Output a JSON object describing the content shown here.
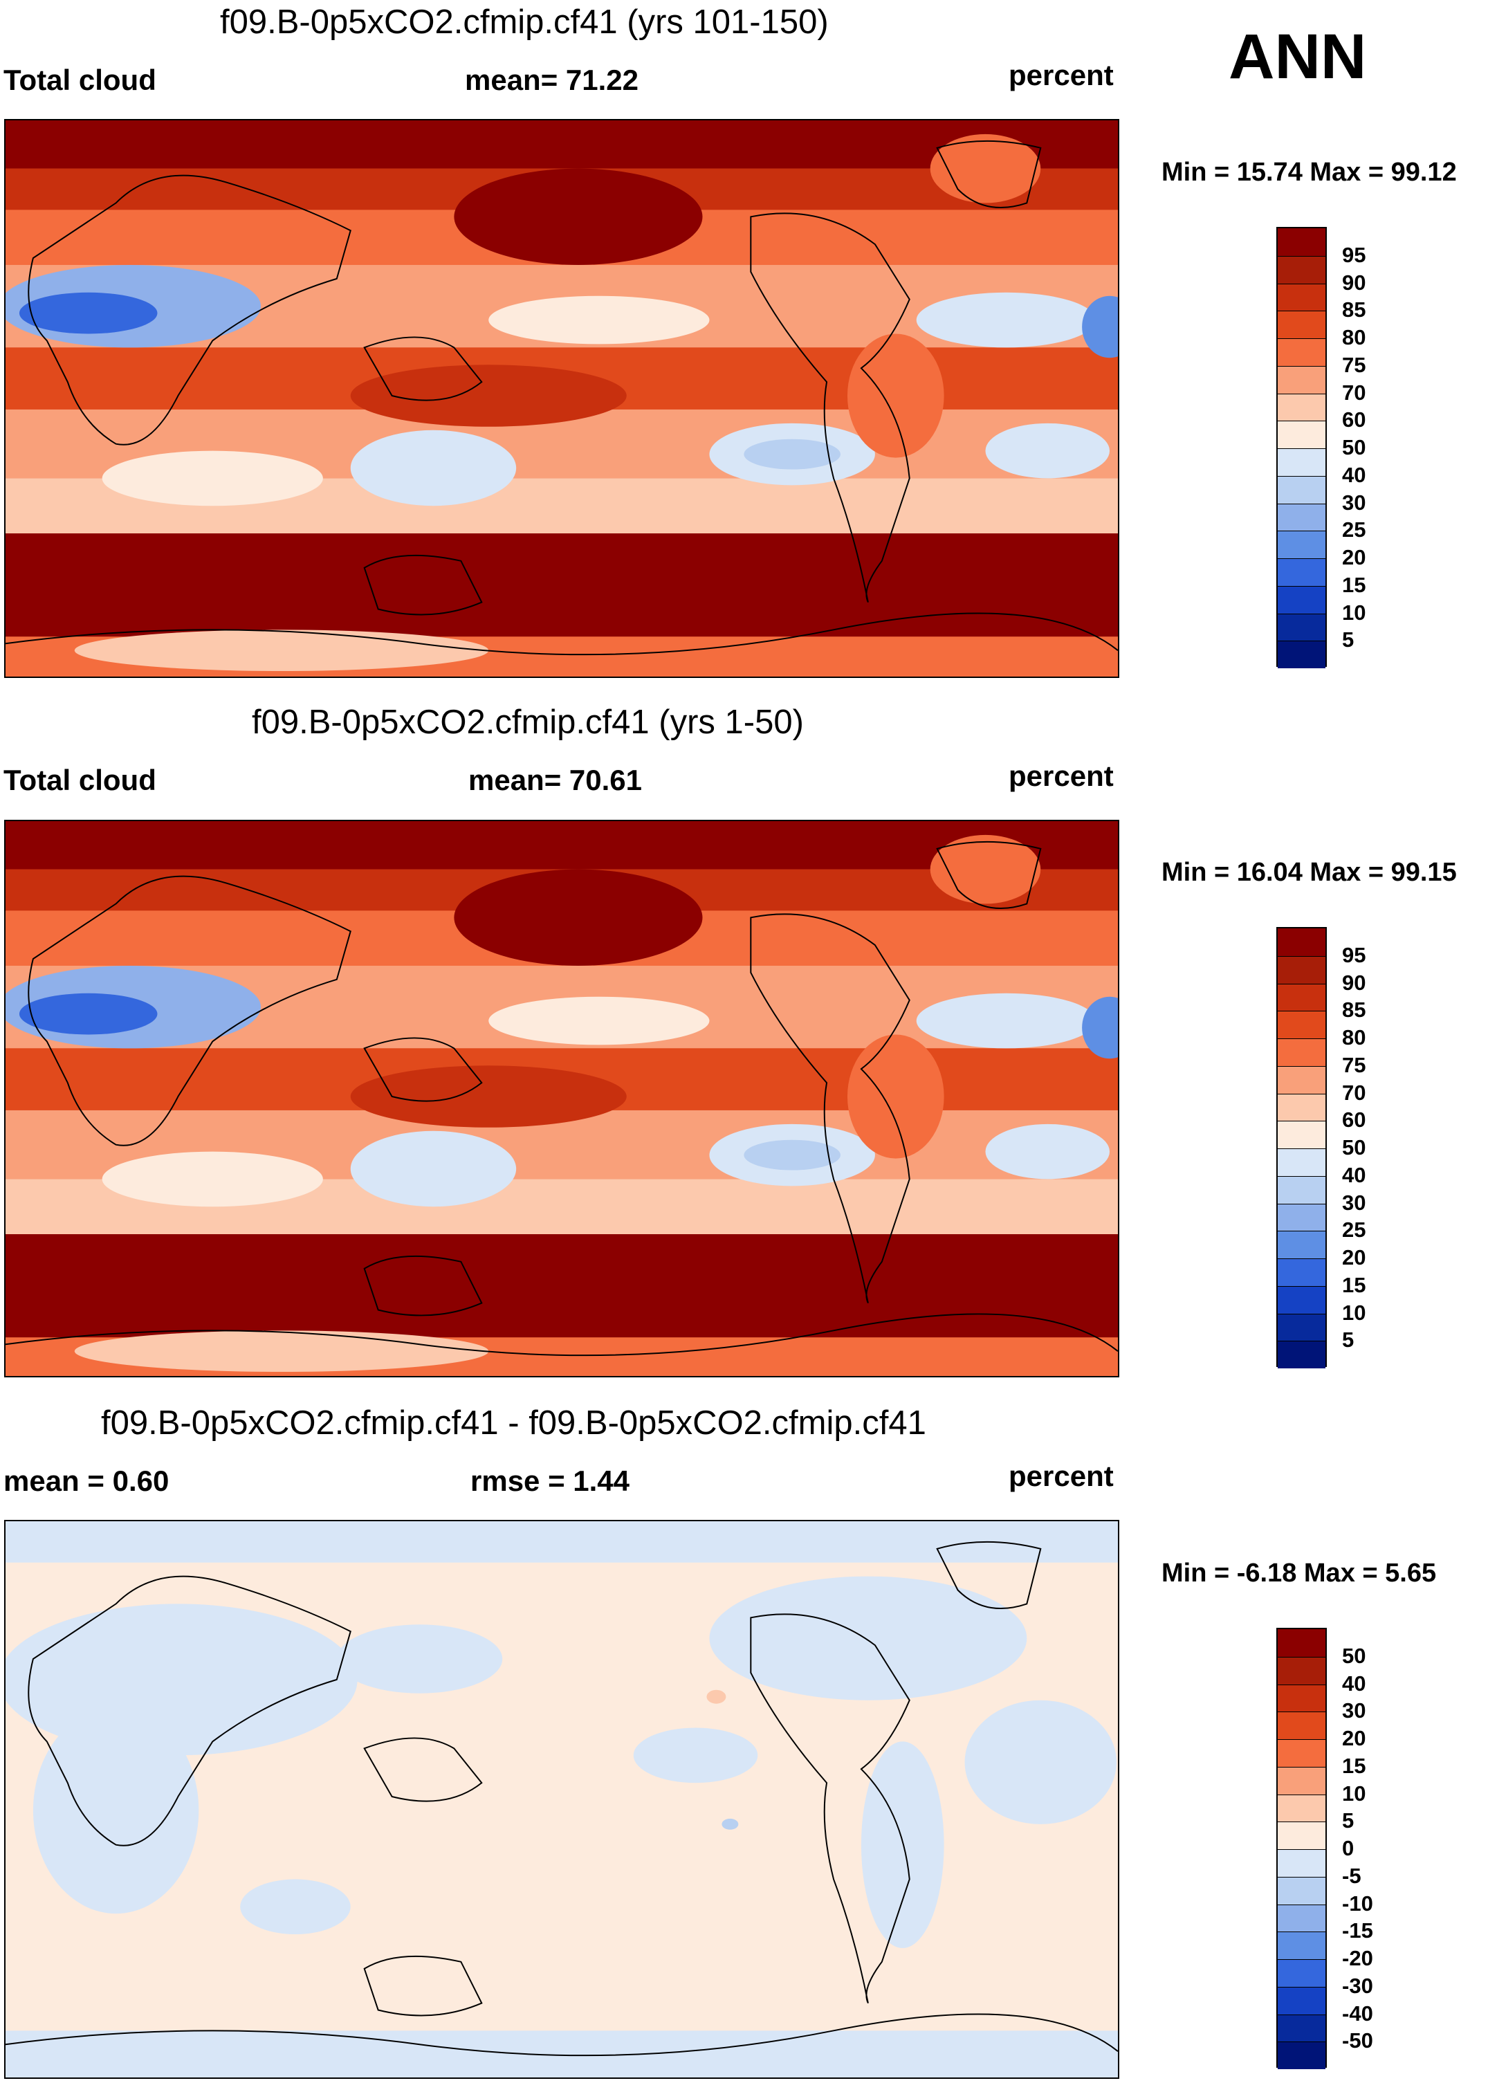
{
  "figure": {
    "season": "ANN"
  },
  "chart_data": [
    {
      "type": "heatmap",
      "title": "f09.B-0p5xCO2.cfmip.cf41 (yrs 101-150)",
      "left_label": "Total cloud",
      "center_label": "mean=  71.22",
      "units": "percent",
      "minmax": "Min =  15.74 Max =  99.12",
      "stats": {
        "mean": 71.22,
        "min": 15.74,
        "max": 99.12
      },
      "colorbar": {
        "levels": [
          "95",
          "90",
          "85",
          "80",
          "75",
          "70",
          "60",
          "50",
          "40",
          "30",
          "25",
          "20",
          "15",
          "10",
          "5"
        ],
        "colors": [
          "#8b0000",
          "#a71e08",
          "#c8300e",
          "#e14a1c",
          "#f46d3e",
          "#f9a07a",
          "#fcc9ad",
          "#fdebdd",
          "#d8e6f7",
          "#b8d0f1",
          "#8fb0ea",
          "#5e8fe4",
          "#3467dd",
          "#1542c4",
          "#072a9c",
          "#001478"
        ]
      }
    },
    {
      "type": "heatmap",
      "title": "f09.B-0p5xCO2.cfmip.cf41 (yrs 1-50)",
      "left_label": "Total cloud",
      "center_label": "mean=  70.61",
      "units": "percent",
      "minmax": "Min =  16.04 Max =  99.15",
      "stats": {
        "mean": 70.61,
        "min": 16.04,
        "max": 99.15
      },
      "colorbar": {
        "levels": [
          "95",
          "90",
          "85",
          "80",
          "75",
          "70",
          "60",
          "50",
          "40",
          "30",
          "25",
          "20",
          "15",
          "10",
          "5"
        ],
        "colors": [
          "#8b0000",
          "#a71e08",
          "#c8300e",
          "#e14a1c",
          "#f46d3e",
          "#f9a07a",
          "#fcc9ad",
          "#fdebdd",
          "#d8e6f7",
          "#b8d0f1",
          "#8fb0ea",
          "#5e8fe4",
          "#3467dd",
          "#1542c4",
          "#072a9c",
          "#001478"
        ]
      }
    },
    {
      "type": "heatmap",
      "title": "f09.B-0p5xCO2.cfmip.cf41 - f09.B-0p5xCO2.cfmip.cf41",
      "left_label": "mean =   0.60",
      "center_label": "rmse =   1.44",
      "units": "percent",
      "minmax": "Min =  -6.18 Max =   5.65",
      "stats": {
        "mean": 0.6,
        "rmse": 1.44,
        "min": -6.18,
        "max": 5.65
      },
      "colorbar": {
        "levels": [
          "50",
          "40",
          "30",
          "20",
          "15",
          "10",
          "5",
          "0",
          "-5",
          "-10",
          "-15",
          "-20",
          "-30",
          "-40",
          "-50"
        ],
        "colors": [
          "#8b0000",
          "#a71e08",
          "#c8300e",
          "#e14a1c",
          "#f46d3e",
          "#f9a07a",
          "#fcc9ad",
          "#fdebdd",
          "#d8e6f7",
          "#b8d0f1",
          "#8fb0ea",
          "#5e8fe4",
          "#3467dd",
          "#1542c4",
          "#072a9c",
          "#001478"
        ]
      }
    }
  ]
}
